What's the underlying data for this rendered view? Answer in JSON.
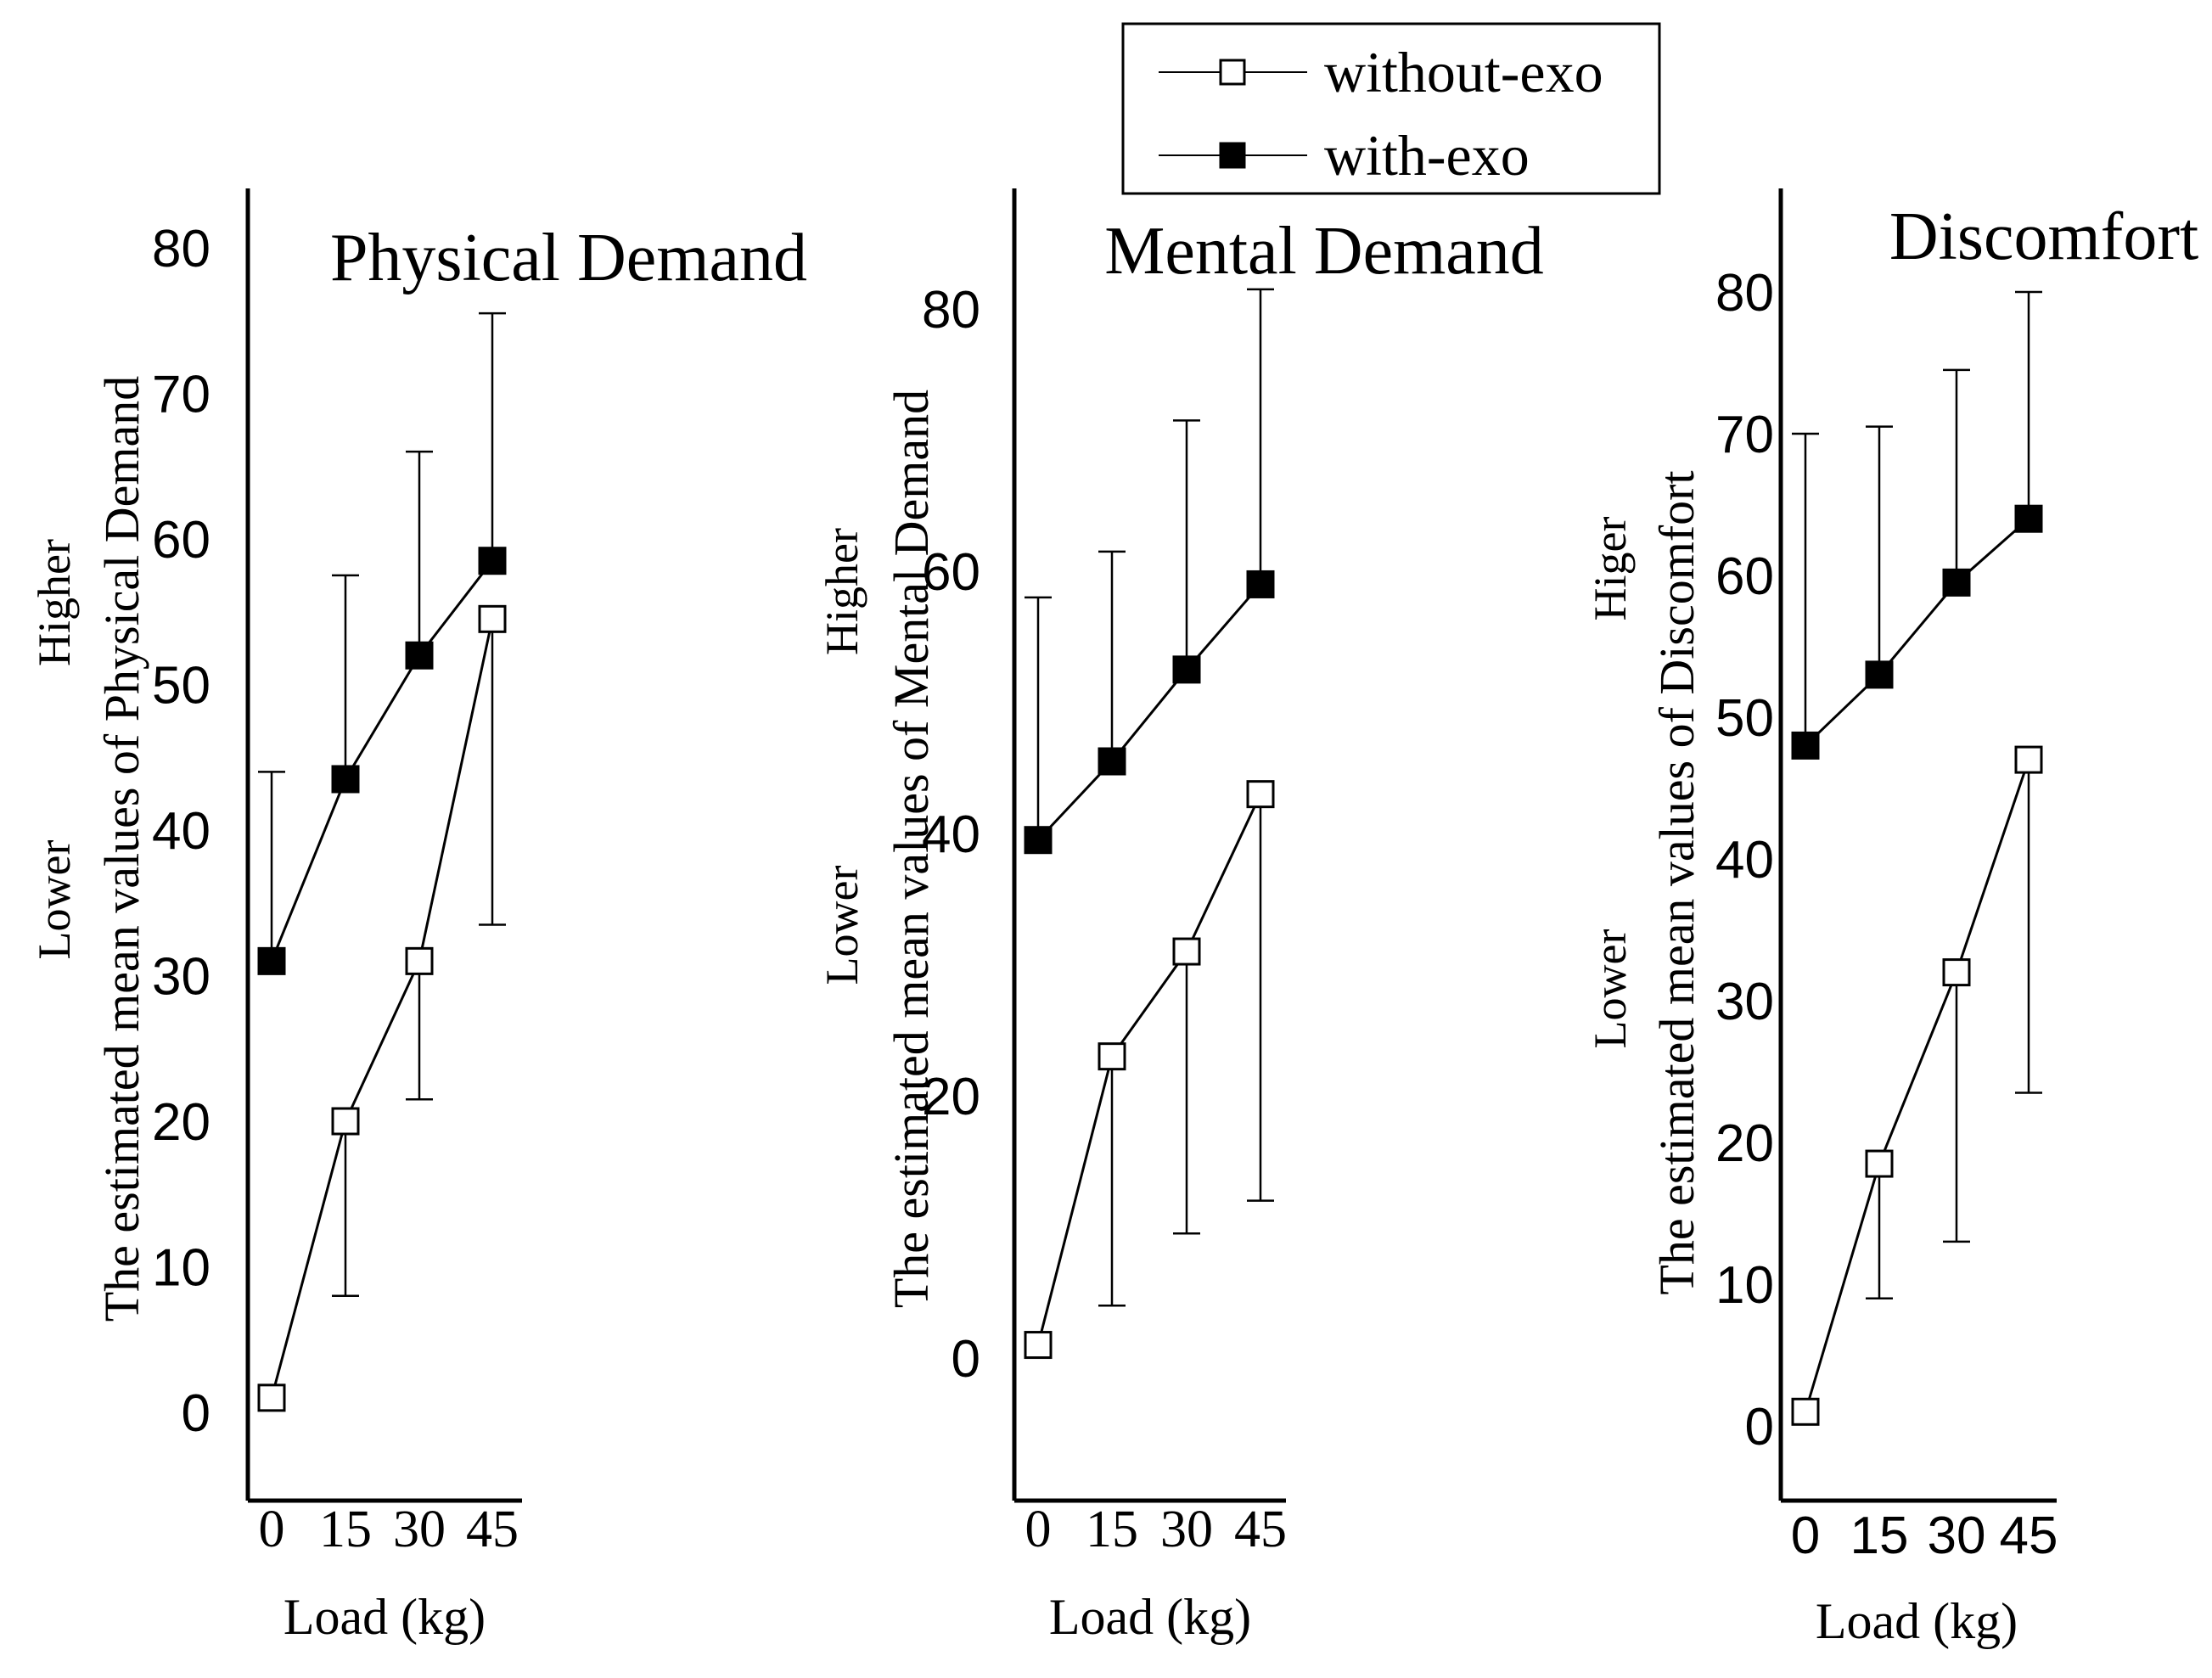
{
  "legend": {
    "items": [
      {
        "label": "without-exo",
        "marker": "open-square"
      },
      {
        "label": "with-exo",
        "marker": "filled-square"
      }
    ]
  },
  "colors": {
    "ink": "#000000",
    "background": "#ffffff"
  },
  "chart_data": [
    {
      "type": "line",
      "title": "Physical Demand",
      "xlabel": "Load  (kg)",
      "ylabel": "The estimated mean values of Physical Demand",
      "ylabel_high": "Higher",
      "ylabel_low": "Lower",
      "categories": [
        "0",
        "15",
        "30",
        "45"
      ],
      "ylim": [
        -5,
        85
      ],
      "yticks": [
        0,
        10,
        20,
        30,
        40,
        50,
        60,
        70,
        80
      ],
      "tick_font": "sans",
      "series": [
        {
          "name": "without-exo",
          "values": [
            1,
            20,
            31,
            54.5
          ],
          "err_low": [
            null,
            8,
            21.5,
            33.5
          ],
          "err_high": [
            null,
            null,
            null,
            null
          ]
        },
        {
          "name": "with-exo",
          "values": [
            31,
            43.5,
            52,
            58.5
          ],
          "err_low": [
            null,
            null,
            null,
            null
          ],
          "err_high": [
            44,
            57.5,
            66,
            75.5
          ]
        }
      ]
    },
    {
      "type": "line",
      "title": "Mental Demand",
      "xlabel": "Load  (kg)",
      "ylabel": "The estimated mean values of Mental Demand",
      "ylabel_high": "Higher",
      "ylabel_low": "Lower",
      "categories": [
        "0",
        "15",
        "30",
        "45"
      ],
      "ylim": [
        -10,
        90
      ],
      "yticks": [
        0,
        20,
        40,
        60,
        80
      ],
      "tick_font": "sans",
      "series": [
        {
          "name": "without-exo",
          "values": [
            1,
            23,
            31,
            43
          ],
          "err_low": [
            null,
            4,
            9.5,
            12
          ],
          "err_high": [
            null,
            null,
            null,
            null
          ]
        },
        {
          "name": "with-exo",
          "values": [
            39.5,
            45.5,
            52.5,
            59
          ],
          "err_low": [
            null,
            null,
            null,
            null
          ],
          "err_high": [
            58,
            61.5,
            71.5,
            81.5
          ]
        }
      ]
    },
    {
      "type": "line",
      "title": "Discomfort",
      "xlabel": "Load  (kg)",
      "ylabel": "The estimated mean values of Discomfort",
      "ylabel_high": "Higer",
      "ylabel_low": "Lower",
      "categories": [
        "0",
        "15",
        "30",
        "45"
      ],
      "ylim": [
        -5,
        85
      ],
      "yticks": [
        0,
        10,
        20,
        30,
        40,
        50,
        60,
        70,
        80
      ],
      "tick_font": "sans",
      "series": [
        {
          "name": "without-exo",
          "values": [
            1,
            18.5,
            32,
            47
          ],
          "err_low": [
            null,
            9,
            13,
            23.5
          ],
          "err_high": [
            null,
            null,
            null,
            null
          ]
        },
        {
          "name": "with-exo",
          "values": [
            48,
            53,
            59.5,
            64
          ],
          "err_low": [
            null,
            null,
            null,
            null
          ],
          "err_high": [
            70,
            70.5,
            74.5,
            80
          ]
        }
      ]
    }
  ]
}
